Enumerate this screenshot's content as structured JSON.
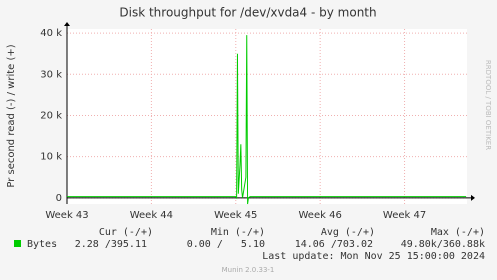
{
  "chart_data": {
    "type": "line",
    "title": "Disk throughput for /dev/xvda4 - by month",
    "y_label": "Pr second read (-) / write (+)",
    "side_text": "RRDTOOL / TOBI OETIKER",
    "x": [
      43,
      45.0,
      45.01,
      45.02,
      45.03,
      45.05,
      45.06,
      45.07,
      45.08,
      45.12,
      45.13,
      45.14,
      45.15,
      45.17,
      47.73
    ],
    "series": [
      {
        "name": "Bytes",
        "color": "#00cc00",
        "values": [
          300,
          300,
          0,
          35000,
          1000,
          8000,
          13000,
          2000,
          0,
          5000,
          39500,
          -1500,
          0,
          300,
          300
        ]
      }
    ],
    "xlim": [
      43,
      47.74
    ],
    "xticks": [
      {
        "value": 43,
        "label": "Week 43"
      },
      {
        "value": 44,
        "label": "Week 44"
      },
      {
        "value": 45,
        "label": "Week 45"
      },
      {
        "value": 46,
        "label": "Week 46"
      },
      {
        "value": 47,
        "label": "Week 47"
      }
    ],
    "ylim": [
      -1500,
      41000
    ],
    "yticks": [
      0,
      {
        "value": 10000,
        "label": "10 k"
      },
      {
        "value": 20000,
        "label": "20 k"
      },
      {
        "value": 30000,
        "label": "30 k"
      },
      {
        "value": 40000,
        "label": "40 k"
      }
    ],
    "grid": true,
    "summary": {
      "headers": [
        "Cur (-/+)",
        "Min (-/+)",
        "Avg (-/+)",
        "Max (-/+)"
      ],
      "row": [
        "2.28 /395.11",
        "0.00 /   5.10",
        "14.06 /703.02",
        "49.80k/360.88k"
      ]
    },
    "last_update": "Last update: Mon Nov 25 15:00:00 2024",
    "footer": "Munin 2.0.33-1"
  }
}
